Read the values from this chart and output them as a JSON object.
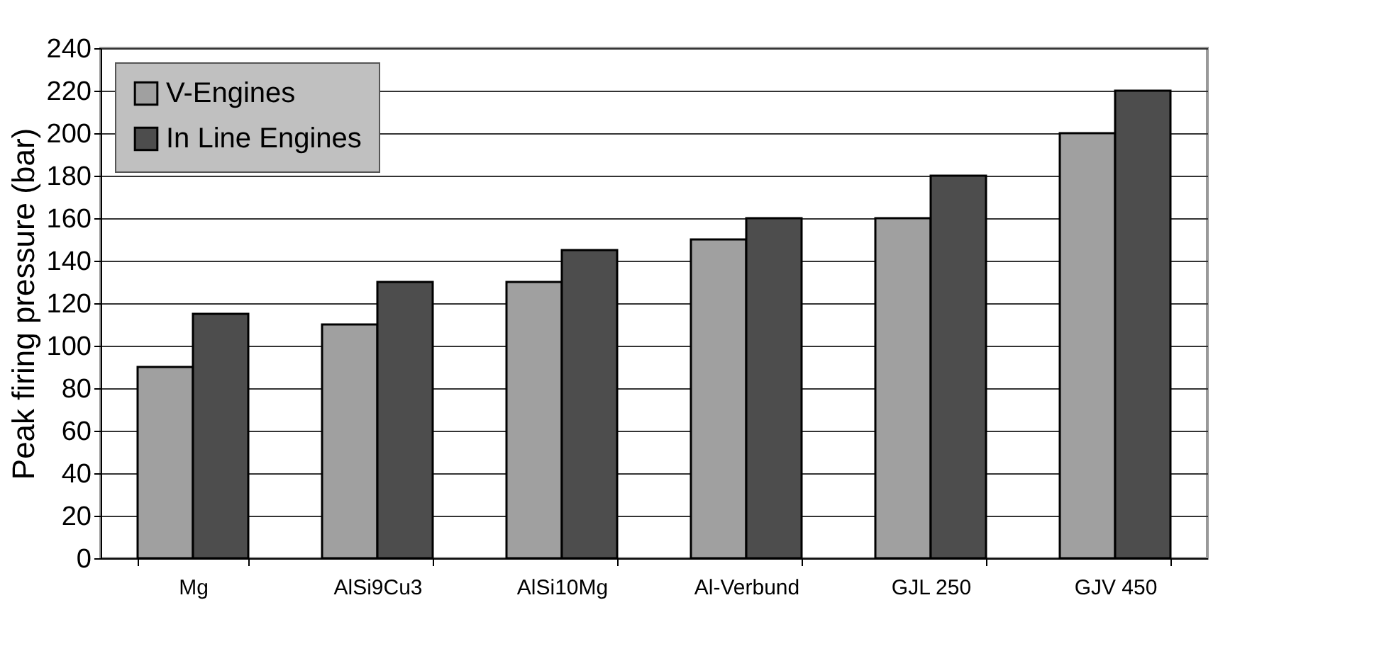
{
  "chart_data": {
    "type": "bar",
    "ylabel": "Peak firing pressure (bar)",
    "categories": [
      "Mg",
      "AlSi9Cu3",
      "AlSi10Mg",
      "Al-Verbund",
      "GJL 250",
      "GJV 450"
    ],
    "series": [
      {
        "name": "V-Engines",
        "color": "#a0a0a0",
        "values": [
          90,
          110,
          130,
          150,
          160,
          200
        ]
      },
      {
        "name": "In Line Engines",
        "color": "#4d4d4d",
        "values": [
          115,
          130,
          145,
          160,
          180,
          220
        ]
      }
    ],
    "ylim": [
      0,
      240
    ],
    "yticks": [
      0,
      20,
      40,
      60,
      80,
      100,
      120,
      140,
      160,
      180,
      200,
      220,
      240
    ],
    "grid": "y",
    "legend": "top left"
  }
}
